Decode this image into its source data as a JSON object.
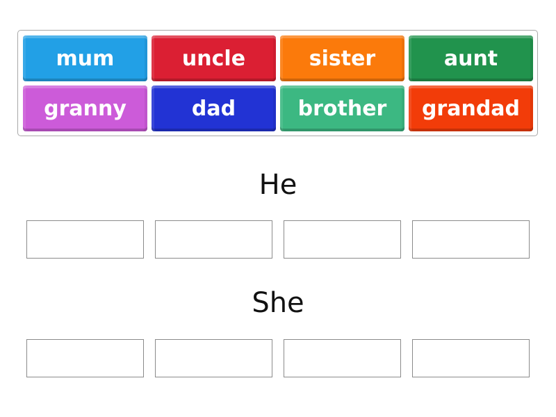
{
  "tiles": [
    {
      "label": "mum",
      "color": "#22a0e6"
    },
    {
      "label": "uncle",
      "color": "#db1f33"
    },
    {
      "label": "sister",
      "color": "#fb7a0b"
    },
    {
      "label": "aunt",
      "color": "#21934d"
    },
    {
      "label": "granny",
      "color": "#cc5bd9"
    },
    {
      "label": "dad",
      "color": "#2233d4"
    },
    {
      "label": "brother",
      "color": "#3cb882"
    },
    {
      "label": "grandad",
      "color": "#f23c09"
    }
  ],
  "groups": [
    {
      "title": "He",
      "slots": 4
    },
    {
      "title": "She",
      "slots": 4
    }
  ]
}
